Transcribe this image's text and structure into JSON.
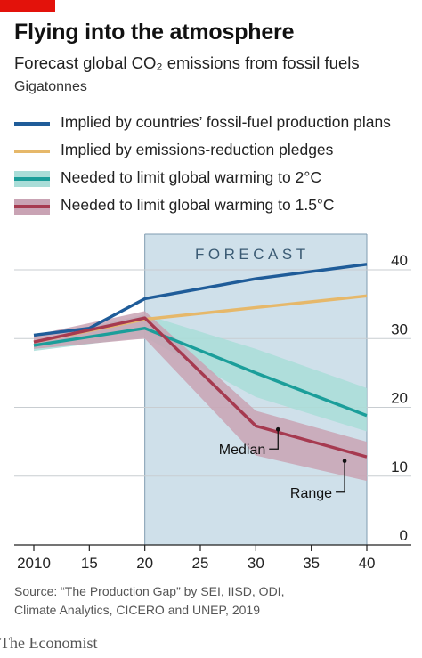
{
  "header": {
    "title": "Flying into the atmosphere",
    "subtitle": "Forecast global CO₂ emissions from fossil fuels",
    "unit": "Gigatonnes"
  },
  "legend": [
    {
      "label": "Implied by countries’ fossil-fuel production plans",
      "color": "#1f5c99",
      "style": "line"
    },
    {
      "label": "Implied by emissions-reduction pledges",
      "color": "#e6b86a",
      "style": "line"
    },
    {
      "label": "Needed to limit global warming to 2°C",
      "color": "#1b9e9a",
      "band_color": "#a9ddd8",
      "style": "band"
    },
    {
      "label": "Needed to limit global warming to 1.5°C",
      "color": "#a63a50",
      "band_color": "#c9a3b4",
      "style": "band"
    }
  ],
  "annotations": {
    "forecast": "FORECAST",
    "median": "Median",
    "range": "Range"
  },
  "source": {
    "line1": "Source: “The Production Gap” by SEI, IISD, ODI,",
    "line2": "Climate Analytics, CICERO and UNEP, 2019"
  },
  "brand": "The Economist",
  "chart_data": {
    "type": "line",
    "x_ticks": [
      2010,
      2015,
      2020,
      2025,
      2030,
      2035,
      2040
    ],
    "x_tick_labels": [
      "2010",
      "15",
      "20",
      "25",
      "30",
      "35",
      "40"
    ],
    "y_ticks": [
      0,
      10,
      20,
      30,
      40
    ],
    "y_tick_labels": [
      "0",
      "10",
      "20",
      "30",
      "40"
    ],
    "xlim": [
      2009,
      2041
    ],
    "ylim": [
      0,
      45
    ],
    "forecast_start": 2020,
    "forecast_end": 2040,
    "grid": true,
    "series": [
      {
        "name": "Implied by countries’ fossil-fuel production plans",
        "color": "#1f5c99",
        "x": [
          2010,
          2015,
          2020,
          2030,
          2040
        ],
        "y": [
          30.5,
          31.5,
          35.8,
          38.7,
          40.8
        ]
      },
      {
        "name": "Implied by emissions-reduction pledges",
        "color": "#e6b86a",
        "x": [
          2010,
          2020,
          2030,
          2040
        ],
        "y": [
          29.5,
          32.8,
          34.5,
          36.2
        ]
      },
      {
        "name": "Needed to limit global warming to 2°C",
        "color": "#1b9e9a",
        "band_color": "#a9ddd8",
        "x": [
          2010,
          2020,
          2030,
          2040
        ],
        "y": [
          29.0,
          31.5,
          25.0,
          18.8
        ],
        "upper": [
          29.8,
          33.5,
          28.5,
          22.8
        ],
        "lower": [
          28.2,
          30.2,
          21.5,
          16.5
        ]
      },
      {
        "name": "Needed to limit global warming to 1.5°C",
        "color": "#a63a50",
        "band_color": "#c9a3b4",
        "x": [
          2010,
          2020,
          2030,
          2040
        ],
        "y": [
          29.5,
          33.0,
          17.3,
          12.8
        ],
        "upper": [
          30.5,
          34.0,
          19.5,
          15.0
        ],
        "lower": [
          28.5,
          30.0,
          13.0,
          9.3
        ]
      }
    ]
  }
}
